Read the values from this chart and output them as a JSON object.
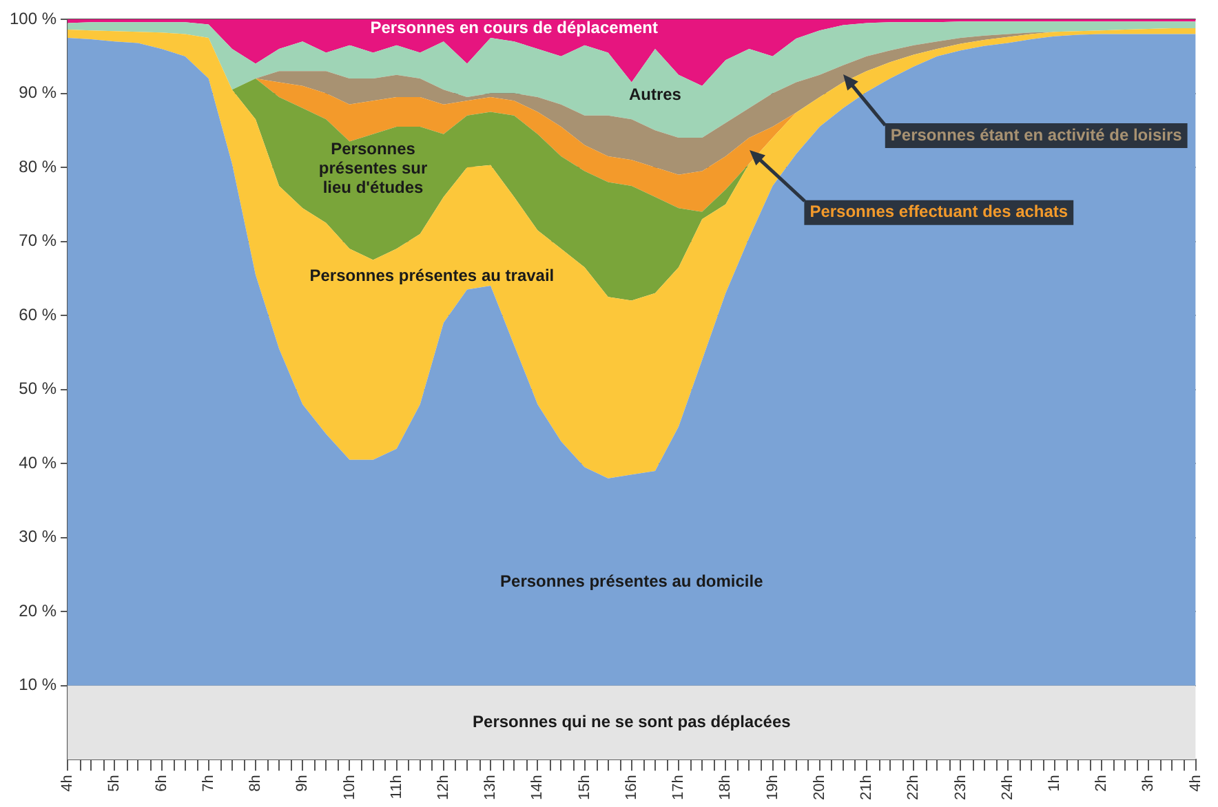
{
  "chart_data": {
    "type": "area",
    "stacked": true,
    "legend": false,
    "grid": "y",
    "marker": "none",
    "categories": [
      "4h",
      null,
      "5h",
      null,
      "6h",
      null,
      "7h",
      null,
      "8h",
      null,
      "9h",
      null,
      "10h",
      null,
      "11h",
      null,
      "12h",
      null,
      "13h",
      null,
      "14h",
      null,
      "15h",
      null,
      "16h",
      null,
      "17h",
      null,
      "18h",
      null,
      "19h",
      null,
      "20h",
      null,
      "21h",
      null,
      "22h",
      null,
      "23h",
      null,
      "24h",
      null,
      "1h",
      null,
      "2h",
      null,
      "3h",
      null,
      "4h"
    ],
    "ylim": [
      0,
      100
    ],
    "yticks": [
      {
        "value": 10,
        "label": "10 %"
      },
      {
        "value": 20,
        "label": "20 %"
      },
      {
        "value": 30,
        "label": "30 %"
      },
      {
        "value": 40,
        "label": "40 %"
      },
      {
        "value": 50,
        "label": "50 %"
      },
      {
        "value": 60,
        "label": "60 %"
      },
      {
        "value": 70,
        "label": "70 %"
      },
      {
        "value": 80,
        "label": "80 %"
      },
      {
        "value": 90,
        "label": "90 %"
      },
      {
        "value": 100,
        "label": "100 %"
      }
    ],
    "series": [
      {
        "name": "Personnes qui ne se sont pas déplacées",
        "color": "#e4e4e4",
        "values": [
          10,
          10,
          10,
          10,
          10,
          10,
          10,
          10,
          10,
          10,
          10,
          10,
          10,
          10,
          10,
          10,
          10,
          10,
          10,
          10,
          10,
          10,
          10,
          10,
          10,
          10,
          10,
          10,
          10,
          10,
          10,
          10,
          10,
          10,
          10,
          10,
          10,
          10,
          10,
          10,
          10,
          10,
          10,
          10,
          10,
          10,
          10,
          10,
          10
        ]
      },
      {
        "name": "Personnes présentes au domicile",
        "color": "#7ba3d6",
        "values": [
          87.5,
          87.3,
          87,
          86.8,
          86,
          85,
          82,
          70.5,
          55.5,
          45.5,
          38,
          34,
          30.5,
          30.5,
          32,
          38,
          49,
          53.5,
          54,
          46,
          38,
          33,
          29.5,
          28,
          28.5,
          29,
          35,
          44,
          53,
          60.5,
          67.5,
          71.8,
          75.5,
          78,
          80.2,
          82,
          83.6,
          85,
          85.8,
          86.4,
          86.8,
          87.3,
          87.7,
          87.9,
          88,
          88,
          88,
          88,
          88
        ]
      },
      {
        "name": "Personnes présentes au travail",
        "color": "#fcc73a",
        "values": [
          1.1,
          1.2,
          1.4,
          1.5,
          2.2,
          3,
          5.5,
          10,
          21,
          22,
          26.5,
          28.5,
          28.5,
          27,
          27,
          23,
          17,
          16.5,
          16.3,
          20,
          23.5,
          26,
          27,
          24.5,
          23.5,
          24,
          21.5,
          19,
          12,
          10,
          6.5,
          5.6,
          4,
          3.5,
          2.8,
          2.2,
          1.6,
          1,
          0.9,
          0.8,
          0.8,
          0.7,
          0.6,
          0.5,
          0.5,
          0.6,
          0.7,
          0.8,
          0.8
        ]
      },
      {
        "name": "Personnes présentes sur lieu d'études",
        "color": "#7aa53a",
        "values": [
          0,
          0,
          0,
          0,
          0,
          0,
          0,
          0,
          5.5,
          12,
          13.5,
          14,
          14.5,
          17,
          16.5,
          14.5,
          8.5,
          7,
          7.2,
          11,
          13,
          12.5,
          13,
          15.5,
          15.5,
          13,
          8,
          1,
          2,
          0,
          0,
          0,
          0,
          0,
          0,
          0,
          0,
          0,
          0,
          0,
          0,
          0,
          0,
          0,
          0,
          0,
          0,
          0,
          0
        ]
      },
      {
        "name": "Personnes effectuant des achats",
        "color": "#f39a2b",
        "values": [
          0,
          0,
          0,
          0,
          0,
          0,
          0,
          0,
          0,
          2,
          3,
          3.5,
          5,
          4.5,
          4,
          4,
          4,
          2,
          2,
          2,
          3,
          4,
          3.5,
          3.5,
          3.5,
          4,
          4.5,
          5.5,
          4.5,
          3.5,
          1.5,
          0,
          0,
          0,
          0,
          0,
          0,
          0,
          0,
          0,
          0,
          0,
          0,
          0,
          0,
          0,
          0,
          0,
          0
        ]
      },
      {
        "name": "Personnes étant en activité de loisirs",
        "color": "#a89272",
        "values": [
          0,
          0,
          0,
          0,
          0,
          0,
          0,
          0,
          0,
          1.5,
          2,
          3,
          3.5,
          3,
          3,
          2.5,
          2,
          0.5,
          0.5,
          1,
          2,
          3,
          4,
          5.5,
          5.5,
          5,
          5,
          4.5,
          4.5,
          4,
          4.5,
          4.1,
          3,
          2.3,
          2,
          1.6,
          1.3,
          1,
          0.8,
          0.6,
          0.4,
          0.2,
          0,
          0,
          0,
          0,
          0,
          0,
          0
        ]
      },
      {
        "name": "Autres",
        "color": "#9fd4b6",
        "values": [
          0.9,
          1.1,
          1.2,
          1.3,
          1.4,
          1.6,
          1.8,
          5.5,
          2,
          3,
          4,
          2.5,
          4.5,
          3.5,
          4,
          3.5,
          6.5,
          4.5,
          7.5,
          7,
          6.5,
          6.5,
          9.5,
          8.5,
          5,
          11,
          8.5,
          7,
          8.5,
          8,
          5,
          5.9,
          6,
          5.4,
          4.5,
          3.8,
          3.1,
          2.6,
          2.2,
          1.9,
          1.7,
          1.5,
          1.4,
          1.3,
          1.2,
          1.1,
          1,
          0.9,
          0.9
        ]
      },
      {
        "name": "Personnes en cours de déplacement",
        "color": "#e6157f",
        "values": [
          0.5,
          0.4,
          0.4,
          0.4,
          0.4,
          0.4,
          0.7,
          4,
          6,
          4,
          3,
          4.5,
          3.5,
          4.5,
          3.5,
          4.5,
          3,
          6,
          2.5,
          3,
          4,
          5,
          3.5,
          4.5,
          8.5,
          4,
          7.5,
          9,
          5.5,
          4,
          5,
          2.6,
          1.5,
          0.8,
          0.5,
          0.4,
          0.4,
          0.4,
          0.3,
          0.3,
          0.3,
          0.3,
          0.3,
          0.3,
          0.3,
          0.3,
          0.3,
          0.3,
          0.3
        ]
      }
    ]
  }
}
